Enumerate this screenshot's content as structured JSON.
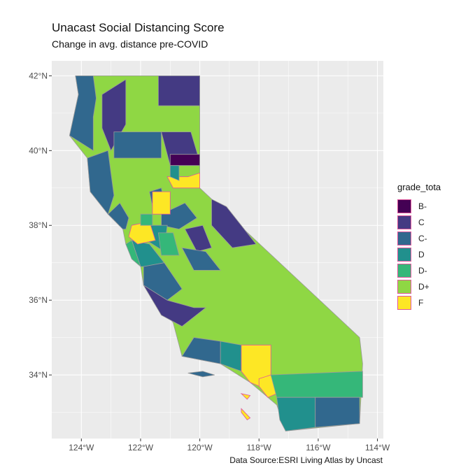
{
  "chart_data": {
    "type": "choropleth-map",
    "title": "Unacast Social Distancing Score",
    "subtitle": "Change in avg. distance pre-COVID",
    "caption": "Data Source:ESRI Living Atlas by Uncast",
    "xlim": [
      -125,
      -113.8
    ],
    "ylim": [
      32.3,
      42.4
    ],
    "x_ticks": [
      {
        "value": -124,
        "label": "124°W"
      },
      {
        "value": -122,
        "label": "122°W"
      },
      {
        "value": -120,
        "label": "120°W"
      },
      {
        "value": -118,
        "label": "118°W"
      },
      {
        "value": -116,
        "label": "116°W"
      },
      {
        "value": -114,
        "label": "114°W"
      }
    ],
    "y_ticks": [
      {
        "value": 34,
        "label": "34°N"
      },
      {
        "value": 36,
        "label": "36°N"
      },
      {
        "value": 38,
        "label": "38°N"
      },
      {
        "value": 40,
        "label": "40°N"
      },
      {
        "value": 42,
        "label": "42°N"
      }
    ],
    "legend": {
      "title": "grade_tota",
      "position": "right",
      "items": [
        {
          "grade": "B-",
          "color": "#440154"
        },
        {
          "grade": "C",
          "color": "#443a83"
        },
        {
          "grade": "C-",
          "color": "#31688e"
        },
        {
          "grade": "D",
          "color": "#21908d"
        },
        {
          "grade": "D-",
          "color": "#35b779"
        },
        {
          "grade": "D+",
          "color": "#8fd744"
        },
        {
          "grade": "F",
          "color": "#fde725"
        }
      ]
    },
    "regions": [
      {
        "grade": "D+",
        "poly": [
          [
            -124.2,
            42
          ],
          [
            -120,
            42
          ],
          [
            -120,
            39
          ],
          [
            -114.6,
            35
          ],
          [
            -114.5,
            34.3
          ],
          [
            -114.6,
            32.7
          ],
          [
            -117.1,
            32.5
          ],
          [
            -117.4,
            33.2
          ],
          [
            -118.3,
            33.8
          ],
          [
            -119.3,
            34.3
          ],
          [
            -120.6,
            34.5
          ],
          [
            -120.9,
            35.4
          ],
          [
            -121.9,
            36.4
          ],
          [
            -122,
            36.9
          ],
          [
            -122.5,
            37.5
          ],
          [
            -122.6,
            37.9
          ],
          [
            -123.1,
            38.3
          ],
          [
            -123.7,
            38.9
          ],
          [
            -123.8,
            39.8
          ],
          [
            -124.4,
            40.4
          ],
          [
            -124.1,
            41.5
          ]
        ]
      },
      {
        "grade": "C",
        "poly": [
          [
            -121.4,
            42
          ],
          [
            -120,
            42
          ],
          [
            -120,
            41.2
          ],
          [
            -121.4,
            41.2
          ]
        ]
      },
      {
        "grade": "C-",
        "poly": [
          [
            -124.2,
            42
          ],
          [
            -123.6,
            42
          ],
          [
            -123.5,
            41.4
          ],
          [
            -123.6,
            40.9
          ],
          [
            -123.6,
            40.0
          ],
          [
            -124.4,
            40.4
          ],
          [
            -124.1,
            41.5
          ]
        ]
      },
      {
        "grade": "C",
        "poly": [
          [
            -123.3,
            41.5
          ],
          [
            -122.5,
            41.9
          ],
          [
            -122.5,
            40.7
          ],
          [
            -123.0,
            40.0
          ],
          [
            -123.3,
            40.6
          ]
        ]
      },
      {
        "grade": "C-",
        "poly": [
          [
            -122.9,
            40.5
          ],
          [
            -121.3,
            40.5
          ],
          [
            -121.3,
            39.8
          ],
          [
            -122.9,
            39.8
          ]
        ]
      },
      {
        "grade": "C",
        "poly": [
          [
            -121.3,
            40.5
          ],
          [
            -120.3,
            40.5
          ],
          [
            -120.0,
            39.7
          ],
          [
            -121.0,
            39.6
          ]
        ]
      },
      {
        "grade": "B-",
        "poly": [
          [
            -121.0,
            39.9
          ],
          [
            -120.0,
            39.9
          ],
          [
            -120.0,
            39.6
          ],
          [
            -121.0,
            39.6
          ]
        ]
      },
      {
        "grade": "C-",
        "poly": [
          [
            -123.8,
            39.8
          ],
          [
            -123.1,
            40.0
          ],
          [
            -123.0,
            39.4
          ],
          [
            -122.9,
            38.8
          ],
          [
            -123.1,
            38.3
          ],
          [
            -123.7,
            38.9
          ]
        ]
      },
      {
        "grade": "C-",
        "poly": [
          [
            -123.1,
            38.3
          ],
          [
            -122.7,
            38.6
          ],
          [
            -122.4,
            38.2
          ],
          [
            -122.5,
            37.9
          ],
          [
            -122.6,
            37.9
          ]
        ]
      },
      {
        "grade": "C-",
        "poly": [
          [
            -121.7,
            38.9
          ],
          [
            -121.3,
            39.0
          ],
          [
            -121.2,
            38.6
          ],
          [
            -121.6,
            38.5
          ]
        ]
      },
      {
        "grade": "C-",
        "poly": [
          [
            -121.3,
            38.3
          ],
          [
            -120.5,
            38.6
          ],
          [
            -120.1,
            38.2
          ],
          [
            -120.7,
            37.9
          ],
          [
            -121.3,
            38.0
          ]
        ]
      },
      {
        "grade": "C",
        "poly": [
          [
            -119.6,
            38.7
          ],
          [
            -119.1,
            38.5
          ],
          [
            -118.1,
            37.5
          ],
          [
            -118.9,
            37.4
          ],
          [
            -119.6,
            38.0
          ]
        ]
      },
      {
        "grade": "C",
        "poly": [
          [
            -120.5,
            37.9
          ],
          [
            -119.9,
            38.0
          ],
          [
            -119.6,
            37.4
          ],
          [
            -120.1,
            37.3
          ]
        ]
      },
      {
        "grade": "C-",
        "poly": [
          [
            -120.6,
            37.4
          ],
          [
            -119.8,
            37.3
          ],
          [
            -119.3,
            36.8
          ],
          [
            -120.2,
            36.8
          ]
        ]
      },
      {
        "grade": "D",
        "poly": [
          [
            -121.8,
            38.0
          ],
          [
            -121.1,
            38.0
          ],
          [
            -121.2,
            37.3
          ],
          [
            -121.8,
            37.6
          ]
        ]
      },
      {
        "grade": "D-",
        "poly": [
          [
            -121.4,
            37.8
          ],
          [
            -120.9,
            37.8
          ],
          [
            -120.7,
            37.2
          ],
          [
            -121.3,
            37.2
          ]
        ]
      },
      {
        "grade": "D",
        "poly": [
          [
            -122.3,
            37.6
          ],
          [
            -121.7,
            37.5
          ],
          [
            -121.2,
            37.0
          ],
          [
            -121.9,
            36.9
          ],
          [
            -122.0,
            36.9
          ]
        ]
      },
      {
        "grade": "D-",
        "poly": [
          [
            -122.5,
            37.5
          ],
          [
            -122.3,
            37.6
          ],
          [
            -122.0,
            36.9
          ],
          [
            -122.3,
            37.1
          ]
        ]
      },
      {
        "grade": "C-",
        "poly": [
          [
            -121.9,
            36.9
          ],
          [
            -121.2,
            37.0
          ],
          [
            -120.6,
            36.3
          ],
          [
            -121.1,
            36.0
          ],
          [
            -121.9,
            36.4
          ]
        ]
      },
      {
        "grade": "C",
        "poly": [
          [
            -121.9,
            36.4
          ],
          [
            -121.1,
            36.0
          ],
          [
            -120.2,
            35.8
          ],
          [
            -119.8,
            35.8
          ],
          [
            -120.6,
            35.3
          ],
          [
            -121.3,
            35.6
          ]
        ]
      },
      {
        "grade": "F",
        "poly": [
          [
            -122.3,
            38.0
          ],
          [
            -121.7,
            38.1
          ],
          [
            -121.5,
            37.6
          ],
          [
            -122.1,
            37.5
          ],
          [
            -122.4,
            37.7
          ]
        ]
      },
      {
        "grade": "F",
        "poly": [
          [
            -121.6,
            38.9
          ],
          [
            -121.0,
            38.9
          ],
          [
            -121.0,
            38.3
          ],
          [
            -121.6,
            38.3
          ]
        ]
      },
      {
        "grade": "F",
        "poly": [
          [
            -121.1,
            39.3
          ],
          [
            -120.4,
            39.3
          ],
          [
            -120.0,
            39.4
          ],
          [
            -120.0,
            39.0
          ],
          [
            -120.9,
            39.0
          ]
        ]
      },
      {
        "grade": "D",
        "poly": [
          [
            -121.0,
            39.6
          ],
          [
            -120.7,
            39.6
          ],
          [
            -120.7,
            39.2
          ],
          [
            -121.0,
            39.3
          ]
        ]
      },
      {
        "grade": "D-",
        "poly": [
          [
            -122.0,
            38.3
          ],
          [
            -121.6,
            38.3
          ],
          [
            -121.6,
            38.0
          ],
          [
            -122.0,
            38.0
          ]
        ]
      },
      {
        "grade": "C-",
        "poly": [
          [
            -120.6,
            34.5
          ],
          [
            -119.3,
            34.3
          ],
          [
            -119.3,
            34.9
          ],
          [
            -120.2,
            35.0
          ]
        ]
      },
      {
        "grade": "D",
        "poly": [
          [
            -119.3,
            34.9
          ],
          [
            -118.6,
            34.8
          ],
          [
            -118.6,
            34.1
          ],
          [
            -119.3,
            34.3
          ]
        ]
      },
      {
        "grade": "F",
        "poly": [
          [
            -118.6,
            34.8
          ],
          [
            -117.6,
            34.8
          ],
          [
            -117.6,
            34.0
          ],
          [
            -117.7,
            33.6
          ],
          [
            -118.3,
            33.8
          ],
          [
            -118.6,
            34.1
          ]
        ]
      },
      {
        "grade": "F",
        "poly": [
          [
            -118.0,
            33.9
          ],
          [
            -117.6,
            34.0
          ],
          [
            -117.4,
            33.5
          ],
          [
            -117.7,
            33.4
          ],
          [
            -118.0,
            33.7
          ]
        ]
      },
      {
        "grade": "D-",
        "poly": [
          [
            -117.6,
            34.0
          ],
          [
            -114.5,
            34.1
          ],
          [
            -114.5,
            33.4
          ],
          [
            -117.4,
            33.4
          ]
        ]
      },
      {
        "grade": "D",
        "poly": [
          [
            -117.4,
            33.4
          ],
          [
            -116.1,
            33.4
          ],
          [
            -116.1,
            32.6
          ],
          [
            -117.1,
            32.5
          ],
          [
            -117.3,
            32.8
          ]
        ]
      },
      {
        "grade": "C-",
        "poly": [
          [
            -116.1,
            33.4
          ],
          [
            -114.6,
            33.4
          ],
          [
            -114.6,
            32.7
          ],
          [
            -116.1,
            32.6
          ]
        ]
      }
    ],
    "islands": [
      {
        "grade": "C-",
        "poly": [
          [
            -120.4,
            34.05
          ],
          [
            -119.9,
            34.1
          ],
          [
            -119.5,
            34.0
          ],
          [
            -119.9,
            33.95
          ]
        ]
      },
      {
        "grade": "F",
        "poly": [
          [
            -118.6,
            33.5
          ],
          [
            -118.3,
            33.45
          ],
          [
            -118.4,
            33.35
          ]
        ]
      },
      {
        "grade": "F",
        "poly": [
          [
            -118.6,
            33.1
          ],
          [
            -118.3,
            32.85
          ],
          [
            -118.4,
            32.8
          ],
          [
            -118.6,
            33.0
          ]
        ]
      }
    ]
  }
}
